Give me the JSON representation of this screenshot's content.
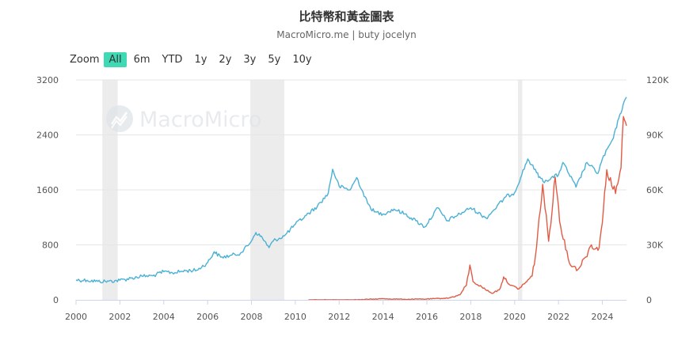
{
  "header": {
    "title": "比特幣和黃金圖表",
    "subtitle": "MacroMicro.me | buty jocelyn"
  },
  "zoom": {
    "label": "Zoom",
    "options": [
      "All",
      "6m",
      "YTD",
      "1y",
      "2y",
      "3y",
      "5y",
      "10y"
    ],
    "active": "All"
  },
  "watermark": {
    "text": "MacroMicro"
  },
  "colors": {
    "gold": "#4bb1d4",
    "bitcoin": "#e05b45",
    "recession": "#ececec",
    "zoom_active": "#3fd9b4"
  },
  "chart_data": {
    "type": "line",
    "title": "比特幣和黃金圖表",
    "x_range": [
      2000,
      2025.1
    ],
    "x_ticks": [
      "2000",
      "2002",
      "2004",
      "2006",
      "2008",
      "2010",
      "2012",
      "2014",
      "2016",
      "2018",
      "2020",
      "2022",
      "2024"
    ],
    "y_left": {
      "range": [
        0,
        3200
      ],
      "ticks": [
        "0",
        "800",
        "1600",
        "2400",
        "3200"
      ]
    },
    "y_right": {
      "range": [
        0,
        120000
      ],
      "ticks": [
        "0",
        "30K",
        "60K",
        "90K",
        "120K"
      ]
    },
    "shaded_periods": [
      [
        2001.2,
        2001.9
      ],
      [
        2007.95,
        2009.5
      ],
      [
        2020.15,
        2020.35
      ]
    ],
    "grid": true,
    "legend": "none",
    "series": [
      {
        "axis": "left",
        "color": "#4bb1d4",
        "points": [
          [
            2000.0,
            290
          ],
          [
            2000.5,
            285
          ],
          [
            2001.0,
            268
          ],
          [
            2001.5,
            270
          ],
          [
            2002.0,
            285
          ],
          [
            2002.5,
            315
          ],
          [
            2003.0,
            345
          ],
          [
            2003.5,
            350
          ],
          [
            2004.0,
            410
          ],
          [
            2004.5,
            395
          ],
          [
            2005.0,
            425
          ],
          [
            2005.5,
            430
          ],
          [
            2006.0,
            540
          ],
          [
            2006.3,
            700
          ],
          [
            2006.6,
            620
          ],
          [
            2007.0,
            640
          ],
          [
            2007.5,
            680
          ],
          [
            2007.9,
            810
          ],
          [
            2008.2,
            980
          ],
          [
            2008.5,
            900
          ],
          [
            2008.8,
            760
          ],
          [
            2009.0,
            860
          ],
          [
            2009.5,
            930
          ],
          [
            2010.0,
            1100
          ],
          [
            2010.5,
            1230
          ],
          [
            2011.0,
            1360
          ],
          [
            2011.5,
            1550
          ],
          [
            2011.7,
            1900
          ],
          [
            2012.0,
            1650
          ],
          [
            2012.5,
            1600
          ],
          [
            2012.8,
            1780
          ],
          [
            2013.3,
            1400
          ],
          [
            2013.6,
            1280
          ],
          [
            2014.0,
            1250
          ],
          [
            2014.5,
            1320
          ],
          [
            2015.0,
            1250
          ],
          [
            2015.5,
            1150
          ],
          [
            2015.9,
            1060
          ],
          [
            2016.5,
            1340
          ],
          [
            2016.9,
            1150
          ],
          [
            2017.5,
            1250
          ],
          [
            2018.0,
            1340
          ],
          [
            2018.7,
            1190
          ],
          [
            2019.0,
            1290
          ],
          [
            2019.6,
            1500
          ],
          [
            2020.0,
            1560
          ],
          [
            2020.6,
            2050
          ],
          [
            2021.0,
            1850
          ],
          [
            2021.3,
            1720
          ],
          [
            2022.0,
            1820
          ],
          [
            2022.2,
            2000
          ],
          [
            2022.8,
            1640
          ],
          [
            2023.3,
            2000
          ],
          [
            2023.8,
            1840
          ],
          [
            2024.0,
            2050
          ],
          [
            2024.5,
            2350
          ],
          [
            2024.8,
            2700
          ],
          [
            2025.1,
            2950
          ]
        ]
      },
      {
        "axis": "right",
        "color": "#e05b45",
        "points": [
          [
            2010.6,
            0
          ],
          [
            2012.0,
            5
          ],
          [
            2013.0,
            100
          ],
          [
            2014.0,
            600
          ],
          [
            2015.0,
            300
          ],
          [
            2016.0,
            430
          ],
          [
            2017.0,
            1000
          ],
          [
            2017.5,
            2700
          ],
          [
            2017.8,
            8000
          ],
          [
            2017.96,
            19000
          ],
          [
            2018.1,
            10000
          ],
          [
            2018.5,
            7000
          ],
          [
            2018.95,
            3600
          ],
          [
            2019.3,
            5500
          ],
          [
            2019.5,
            12500
          ],
          [
            2019.8,
            8000
          ],
          [
            2020.2,
            6000
          ],
          [
            2020.5,
            9500
          ],
          [
            2020.8,
            13000
          ],
          [
            2021.0,
            29000
          ],
          [
            2021.28,
            63000
          ],
          [
            2021.55,
            32000
          ],
          [
            2021.85,
            67000
          ],
          [
            2022.1,
            40000
          ],
          [
            2022.5,
            20000
          ],
          [
            2022.88,
            16500
          ],
          [
            2023.2,
            23000
          ],
          [
            2023.5,
            30000
          ],
          [
            2023.8,
            27000
          ],
          [
            2024.0,
            42000
          ],
          [
            2024.2,
            71000
          ],
          [
            2024.6,
            58000
          ],
          [
            2024.85,
            72000
          ],
          [
            2024.96,
            100000
          ],
          [
            2025.1,
            95000
          ]
        ]
      }
    ]
  }
}
